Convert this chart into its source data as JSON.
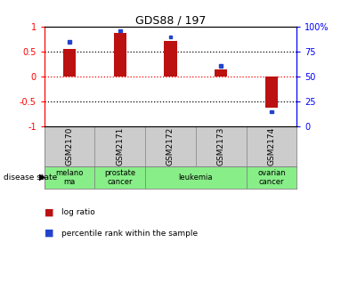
{
  "title": "GDS88 / 197",
  "samples": [
    "GSM2170",
    "GSM2171",
    "GSM2172",
    "GSM2173",
    "GSM2174"
  ],
  "log_ratio": [
    0.55,
    0.88,
    0.72,
    0.15,
    -0.62
  ],
  "percentile_rank_scaled": [
    0.7,
    0.92,
    0.8,
    0.22,
    -0.7
  ],
  "disease_state": [
    {
      "label": "melano\nma",
      "span": [
        0,
        1
      ]
    },
    {
      "label": "prostate\ncancer",
      "span": [
        1,
        2
      ]
    },
    {
      "label": "leukemia",
      "span": [
        2,
        4
      ]
    },
    {
      "label": "ovarian\ncancer",
      "span": [
        4,
        5
      ]
    }
  ],
  "bar_color_red": "#bb1111",
  "bar_color_blue": "#2244cc",
  "disease_bg_color": "#88ee88",
  "sample_bg_color": "#cccccc",
  "ylim": [
    -1,
    1
  ],
  "yticks_left": [
    -1,
    -0.5,
    0,
    0.5,
    1
  ],
  "yticks_right_vals": [
    -1,
    -0.5,
    0,
    0.5,
    1
  ],
  "yticks_right_labels": [
    "0",
    "25",
    "50",
    "75",
    "100%"
  ],
  "hlines_black": [
    0.5,
    -0.5
  ],
  "hline_red": 0,
  "bar_width": 0.25,
  "blue_sq_size": 0.06
}
